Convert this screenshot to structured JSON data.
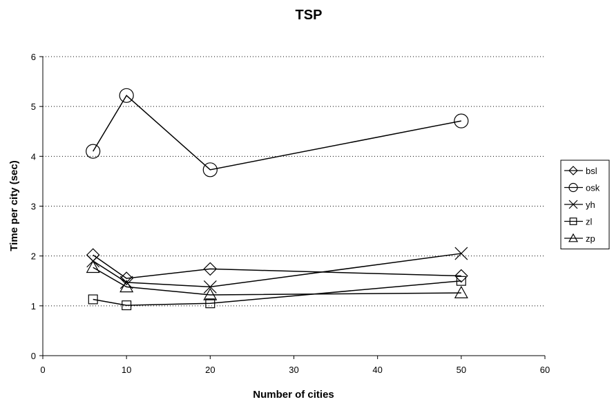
{
  "chart_data": {
    "type": "line",
    "title": "TSP",
    "xlabel": "Number of cities",
    "ylabel": "Time per city (sec)",
    "xlim": [
      0,
      60
    ],
    "ylim": [
      0,
      6
    ],
    "xticks": [
      "0",
      "10",
      "20",
      "30",
      "40",
      "50",
      "60"
    ],
    "yticks": [
      "0",
      "1",
      "2",
      "3",
      "4",
      "5",
      "6"
    ],
    "grid": "horizontal dotted",
    "legend_position": "right",
    "x": [
      6,
      10,
      20,
      50
    ],
    "series": [
      {
        "name": "bsl",
        "marker": "diamond",
        "values": [
          2.02,
          1.55,
          1.74,
          1.6
        ]
      },
      {
        "name": "osk",
        "marker": "circle",
        "values": [
          4.1,
          5.22,
          3.73,
          4.71
        ]
      },
      {
        "name": "yh",
        "marker": "x",
        "values": [
          1.9,
          1.47,
          1.38,
          2.05
        ]
      },
      {
        "name": "zl",
        "marker": "square",
        "values": [
          1.13,
          1.01,
          1.05,
          1.5
        ]
      },
      {
        "name": "zp",
        "marker": "triangle",
        "values": [
          1.77,
          1.38,
          1.22,
          1.26
        ]
      }
    ],
    "line_color": "#000000"
  }
}
